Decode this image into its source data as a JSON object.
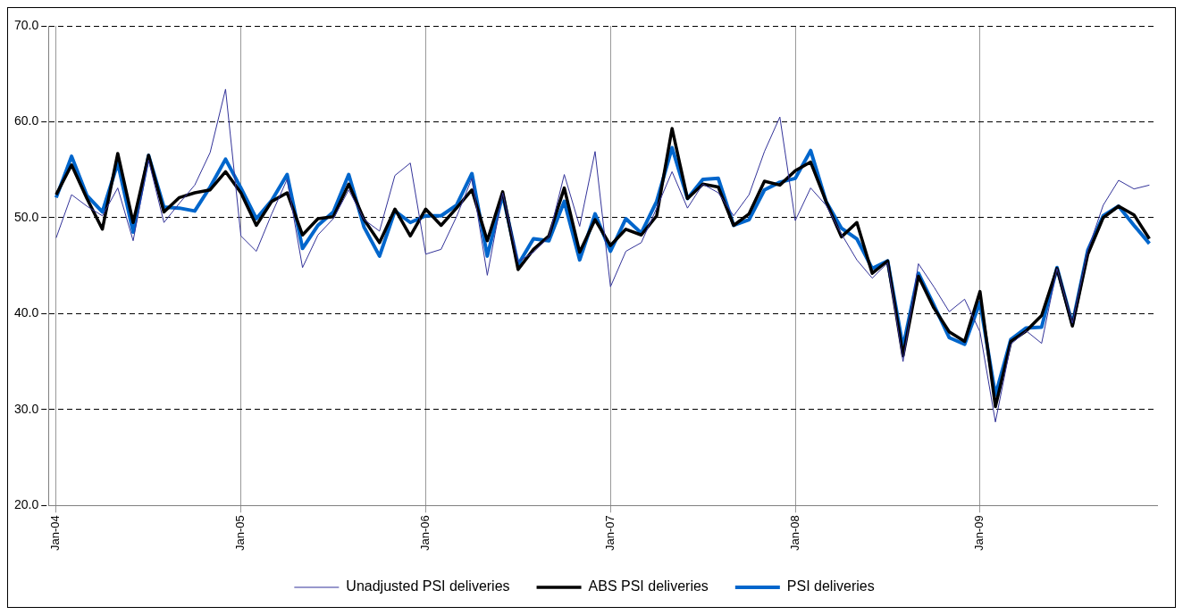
{
  "chart_data": {
    "type": "line",
    "categories": [
      "Jan-04",
      null,
      null,
      null,
      null,
      null,
      null,
      null,
      null,
      null,
      null,
      null,
      "Jan-05",
      null,
      null,
      null,
      null,
      null,
      null,
      null,
      null,
      null,
      null,
      null,
      "Jan-06",
      null,
      null,
      null,
      null,
      null,
      null,
      null,
      null,
      null,
      null,
      null,
      "Jan-07",
      null,
      null,
      null,
      null,
      null,
      null,
      null,
      null,
      null,
      null,
      null,
      "Jan-08",
      null,
      null,
      null,
      null,
      null,
      null,
      null,
      null,
      null,
      null,
      null,
      "Jan-09",
      null,
      null,
      null,
      null,
      null,
      null,
      null,
      null,
      null,
      null,
      null
    ],
    "series": [
      {
        "name": "Unadjusted PSI deliveries",
        "color": "#333399",
        "values": [
          47.9,
          52.4,
          51.2,
          50.2,
          53.1,
          47.6,
          56.0,
          49.5,
          51.5,
          53.4,
          56.8,
          63.4,
          48.1,
          46.5,
          50.4,
          54.0,
          44.8,
          48.2,
          49.9,
          52.9,
          49.8,
          48.6,
          54.4,
          55.7,
          46.2,
          46.7,
          50.1,
          54.1,
          44.0,
          52.6,
          45.4,
          46.4,
          48.0,
          54.5,
          49.1,
          56.9,
          42.8,
          46.5,
          47.4,
          51.0,
          54.8,
          51.0,
          53.5,
          52.6,
          50.2,
          52.4,
          56.9,
          60.5,
          49.7,
          53.1,
          51.3,
          48.3,
          45.6,
          43.7,
          45.3,
          35.0,
          45.2,
          42.8,
          40.2,
          41.5,
          38.1,
          28.7,
          36.8,
          38.2,
          36.9,
          44.7,
          39.0,
          46.6,
          51.3,
          53.9,
          53.0,
          53.4
        ]
      },
      {
        "name": "ABS PSI deliveries",
        "color": "#000000",
        "values": [
          52.4,
          55.5,
          52.0,
          48.8,
          56.7,
          49.5,
          56.5,
          50.6,
          52.1,
          52.6,
          52.9,
          54.8,
          52.6,
          49.2,
          51.7,
          52.6,
          48.2,
          49.9,
          50.1,
          53.5,
          49.8,
          47.4,
          50.9,
          48.1,
          50.9,
          49.2,
          51.0,
          52.9,
          47.6,
          52.7,
          44.6,
          46.7,
          48.1,
          53.1,
          46.4,
          49.8,
          47.1,
          48.8,
          48.2,
          50.2,
          59.3,
          52.0,
          53.5,
          53.2,
          49.2,
          50.4,
          53.8,
          53.4,
          54.9,
          55.8,
          51.7,
          48.0,
          49.5,
          44.2,
          45.5,
          35.6,
          43.9,
          40.6,
          38.1,
          37.1,
          42.3,
          30.3,
          37.1,
          38.2,
          39.8,
          44.7,
          38.7,
          46.2,
          50.0,
          51.2,
          50.3,
          47.8
        ]
      },
      {
        "name": "PSI deliveries",
        "color": "#0066cc",
        "values": [
          52.1,
          56.4,
          52.3,
          50.6,
          55.7,
          48.5,
          56.5,
          51.1,
          51.0,
          50.7,
          53.2,
          56.1,
          53.1,
          49.9,
          51.8,
          54.5,
          46.8,
          49.2,
          50.6,
          54.5,
          49.0,
          46.0,
          50.7,
          49.5,
          50.2,
          50.2,
          51.3,
          54.6,
          46.0,
          52.4,
          45.1,
          47.8,
          47.6,
          51.7,
          45.6,
          50.4,
          46.5,
          49.9,
          48.4,
          51.7,
          57.3,
          52.0,
          54.0,
          54.1,
          49.2,
          49.8,
          52.9,
          53.7,
          54.1,
          57.0,
          51.7,
          48.9,
          47.8,
          44.7,
          45.5,
          36.5,
          44.2,
          40.9,
          37.5,
          36.8,
          41.2,
          31.5,
          37.3,
          38.5,
          38.6,
          44.8,
          38.9,
          46.6,
          50.2,
          51.2,
          49.2,
          47.3
        ]
      }
    ],
    "ylim": [
      20,
      70
    ],
    "yticks": [
      {
        "value": 20,
        "label": "20.0"
      },
      {
        "value": 30,
        "label": "30.0"
      },
      {
        "value": 40,
        "label": "40.0"
      },
      {
        "value": 50,
        "label": "50.0"
      },
      {
        "value": 60,
        "label": "60.0"
      },
      {
        "value": 70,
        "label": "70.0"
      }
    ],
    "grid": true,
    "legend": "bottom",
    "marker": "none",
    "line_style": "solid"
  }
}
